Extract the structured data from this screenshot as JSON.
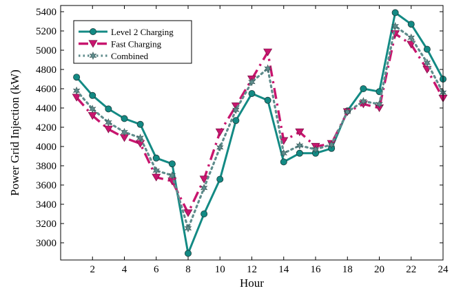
{
  "chart_data": {
    "type": "line",
    "xlabel": "Hour",
    "ylabel": "Power Grid Injection (kW)",
    "xlim": [
      0,
      24
    ],
    "ylim": [
      2900,
      5400
    ],
    "xticks": [
      2,
      4,
      6,
      8,
      10,
      12,
      14,
      16,
      18,
      20,
      22,
      24
    ],
    "yticks": [
      3000,
      3200,
      3400,
      3600,
      3800,
      4000,
      4200,
      4400,
      4600,
      4800,
      5000,
      5200,
      5400
    ],
    "grid": false,
    "legend_position": "top-left",
    "x": [
      1,
      2,
      3,
      4,
      5,
      6,
      7,
      8,
      9,
      10,
      11,
      12,
      13,
      14,
      15,
      16,
      17,
      18,
      19,
      20,
      21,
      22,
      23,
      24
    ],
    "series": [
      {
        "name": "Level 2 Charging",
        "color": "#138a84",
        "marker": "circle",
        "values": [
          4720,
          4530,
          4390,
          4290,
          4230,
          3880,
          3820,
          2890,
          3300,
          3660,
          4270,
          4550,
          4480,
          3840,
          3930,
          3930,
          3980,
          4370,
          4600,
          4570,
          5390,
          5270,
          5010,
          4700
        ]
      },
      {
        "name": "Fast Charging",
        "color": "#c8156e",
        "marker": "triangle-down",
        "values": [
          4510,
          4320,
          4180,
          4090,
          4030,
          3680,
          3640,
          3310,
          3660,
          4150,
          4420,
          4700,
          4980,
          4060,
          4150,
          4000,
          4030,
          4360,
          4440,
          4400,
          5170,
          5060,
          4800,
          4500
        ]
      },
      {
        "name": "Combined",
        "color": "#5f8c8c",
        "marker": "star",
        "values": [
          4580,
          4390,
          4250,
          4150,
          4090,
          3750,
          3700,
          3150,
          3570,
          3990,
          4380,
          4670,
          4810,
          3930,
          4010,
          3970,
          4020,
          4360,
          4470,
          4440,
          5250,
          5130,
          4870,
          4560
        ]
      }
    ]
  }
}
